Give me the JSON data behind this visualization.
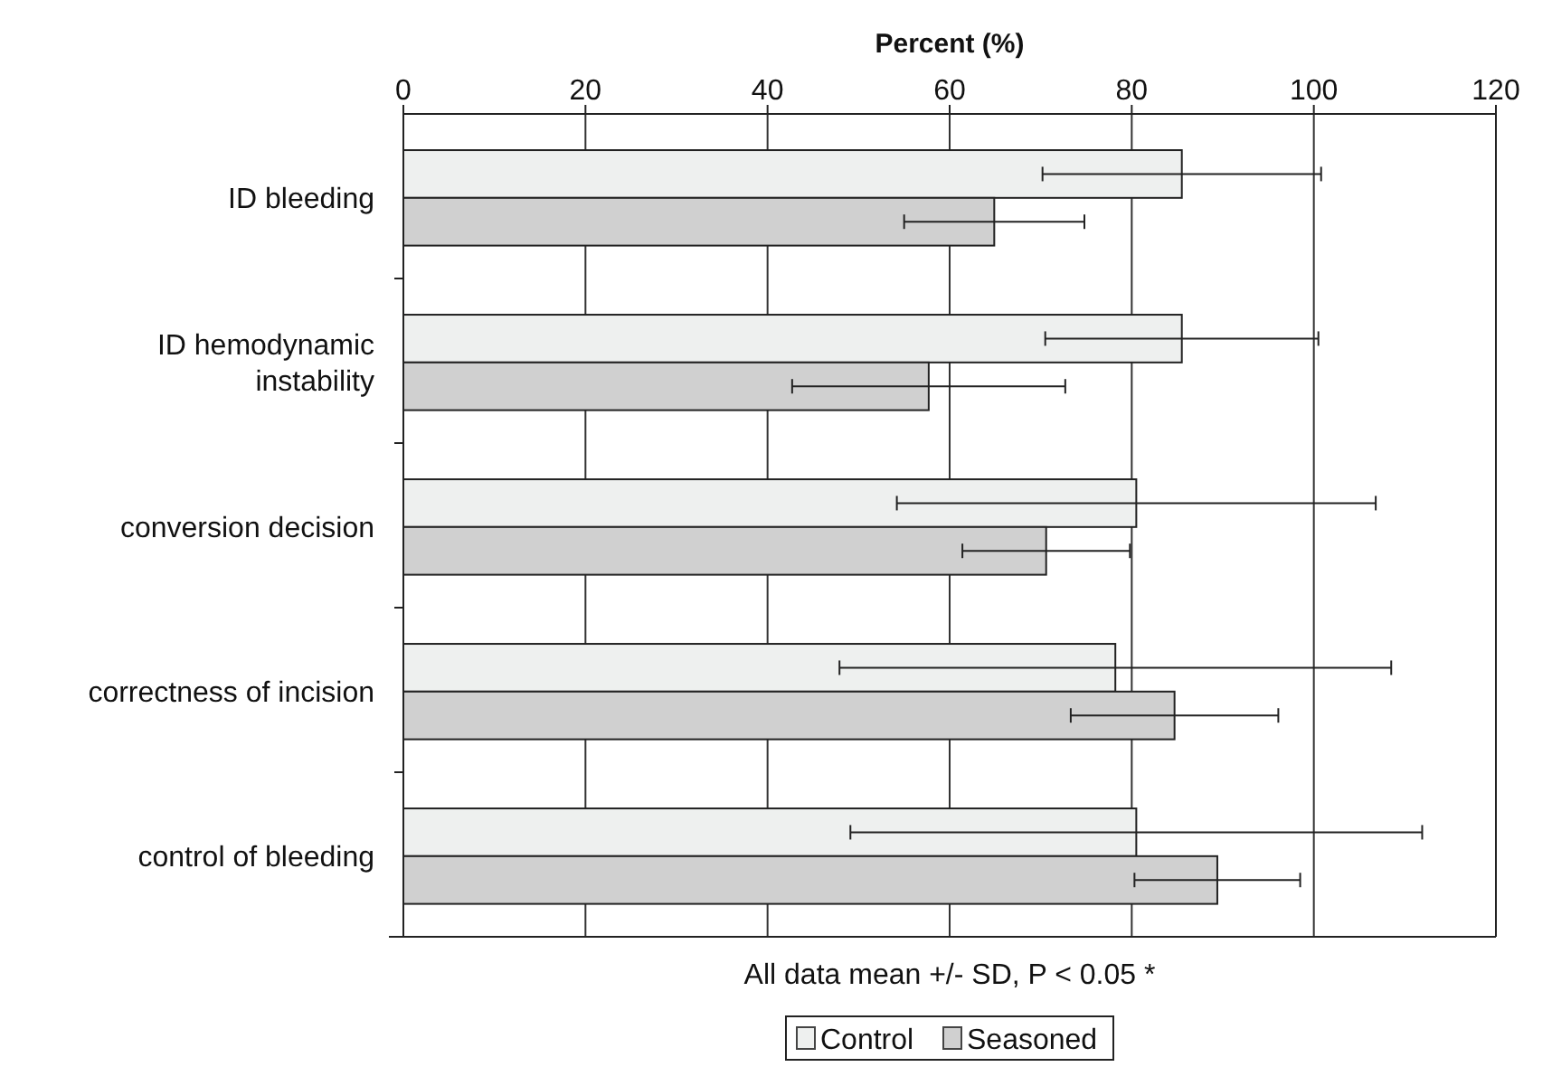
{
  "chart_data": {
    "type": "bar",
    "orientation": "horizontal",
    "xlabel": "Percent (%)",
    "categories": [
      "ID bleeding",
      "ID hemodynamic instability",
      "conversion decision",
      "correctness of incision",
      "control of bleeding"
    ],
    "series": [
      {
        "name": "Control",
        "color": "#eef0ef",
        "values": [
          85.5,
          85.5,
          80.5,
          78.2,
          80.5
        ],
        "errors": [
          15.3,
          15,
          26.3,
          30.3,
          31.4
        ]
      },
      {
        "name": "Seasoned",
        "color": "#d0d0d0",
        "values": [
          64.9,
          57.7,
          70.6,
          84.7,
          89.4
        ],
        "errors": [
          9.9,
          15,
          9.2,
          11.4,
          9.1
        ]
      }
    ],
    "xlim": [
      0,
      120
    ],
    "xticks": [
      0,
      20,
      40,
      60,
      80,
      100,
      120
    ],
    "grid": "x",
    "legend": "bottom",
    "annotations": [
      "All data mean +/- SD, P < 0.05 *"
    ]
  }
}
